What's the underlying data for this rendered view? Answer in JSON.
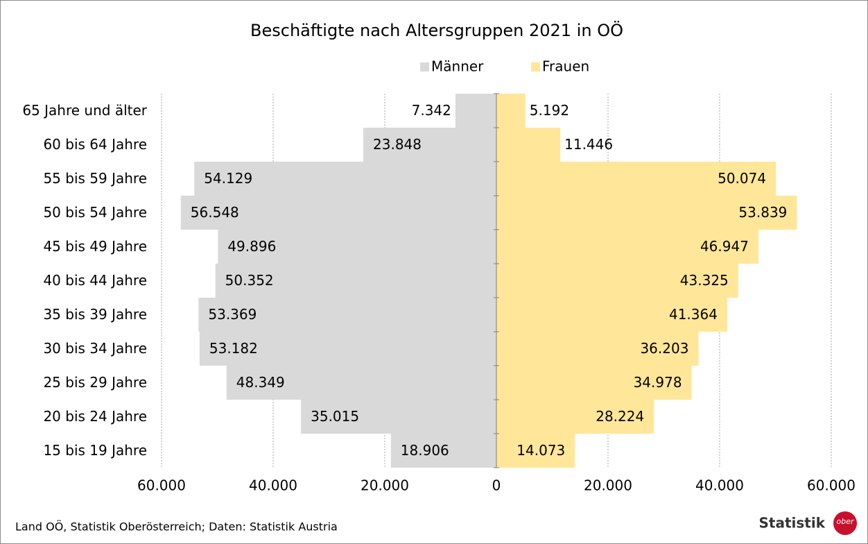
{
  "chart_data": {
    "type": "pyramid",
    "title": "Beschäftigte nach Altersgruppen 2021 in OÖ",
    "categories": [
      "65 Jahre und älter",
      "60 bis 64 Jahre",
      "55 bis 59 Jahre",
      "50 bis 54 Jahre",
      "45 bis 49 Jahre",
      "40 bis 44 Jahre",
      "35 bis 39 Jahre",
      "30 bis 34 Jahre",
      "25 bis 29 Jahre",
      "20 bis 24 Jahre",
      "15 bis 19 Jahre"
    ],
    "series": [
      {
        "name": "Männer",
        "color": "#d9d9d9",
        "side": "left",
        "values": [
          7342,
          23848,
          54129,
          56548,
          49896,
          50352,
          53369,
          53182,
          48349,
          35015,
          18906
        ],
        "value_labels": [
          "7.342",
          "23.848",
          "54.129",
          "56.548",
          "49.896",
          "50.352",
          "53.369",
          "53.182",
          "48.349",
          "35.015",
          "18.906"
        ]
      },
      {
        "name": "Frauen",
        "color": "#ffe699",
        "side": "right",
        "values": [
          5192,
          11446,
          50074,
          53839,
          46947,
          43325,
          41364,
          36203,
          34978,
          28224,
          14073
        ],
        "value_labels": [
          "5.192",
          "11.446",
          "50.074",
          "53.839",
          "46.947",
          "43.325",
          "41.364",
          "36.203",
          "34.978",
          "28.224",
          "14.073"
        ]
      }
    ],
    "xlim": [
      0,
      60000
    ],
    "xticks": [
      0,
      {
        "value": 20000,
        "label": "20.000"
      },
      {
        "value": 40000,
        "label": "40.000"
      },
      {
        "value": 60000,
        "label": "60.000"
      }
    ],
    "grid": true,
    "legend": "top",
    "source": "Land OÖ, Statistik Oberösterreich; Daten: Statistik Austria",
    "logo": {
      "text": "Statistik",
      "badge": "ober"
    }
  }
}
